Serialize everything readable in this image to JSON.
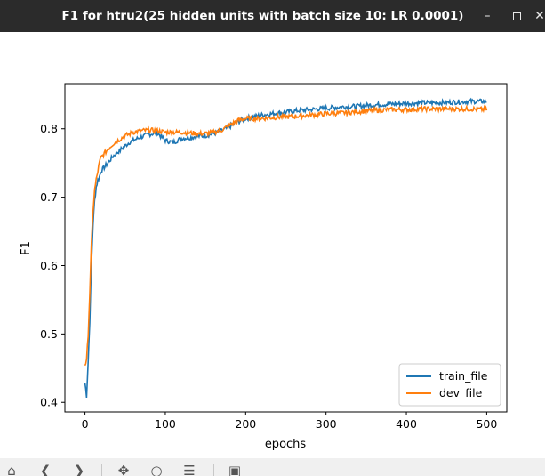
{
  "window": {
    "title": "F1 for htru2(25 hidden units with batch size 10: LR 0.0001)",
    "min_glyph": "–",
    "close_glyph": "✕"
  },
  "toolbar": {
    "icons": [
      "home-icon",
      "back-arrow-icon",
      "forward-arrow-icon",
      "pan-icon",
      "zoom-icon",
      "configure-subplots-icon",
      "save-icon"
    ]
  },
  "chart_data": {
    "type": "line",
    "xlabel": "epochs",
    "ylabel": "F1",
    "xlim": [
      -25,
      525
    ],
    "ylim": [
      0.386,
      0.866
    ],
    "xticks": [
      0,
      100,
      200,
      300,
      400,
      500
    ],
    "yticks": [
      0.4,
      0.5,
      0.6,
      0.7,
      0.8
    ],
    "ytick_labels": [
      "0.4",
      "0.5",
      "0.6",
      "0.7",
      "0.8"
    ],
    "legend_position": "lower-right",
    "grid": false,
    "series": [
      {
        "name": "train_file",
        "color": "#1f77b4",
        "points": [
          [
            0,
            0.428
          ],
          [
            2,
            0.41
          ],
          [
            4,
            0.46
          ],
          [
            6,
            0.52
          ],
          [
            8,
            0.6
          ],
          [
            10,
            0.66
          ],
          [
            12,
            0.695
          ],
          [
            14,
            0.715
          ],
          [
            16,
            0.725
          ],
          [
            18,
            0.73
          ],
          [
            20,
            0.738
          ],
          [
            25,
            0.745
          ],
          [
            30,
            0.752
          ],
          [
            35,
            0.76
          ],
          [
            40,
            0.765
          ],
          [
            45,
            0.77
          ],
          [
            50,
            0.775
          ],
          [
            55,
            0.78
          ],
          [
            60,
            0.783
          ],
          [
            70,
            0.788
          ],
          [
            80,
            0.792
          ],
          [
            90,
            0.794
          ],
          [
            100,
            0.783
          ],
          [
            110,
            0.78
          ],
          [
            120,
            0.786
          ],
          [
            130,
            0.787
          ],
          [
            140,
            0.789
          ],
          [
            150,
            0.79
          ],
          [
            160,
            0.793
          ],
          [
            170,
            0.797
          ],
          [
            180,
            0.803
          ],
          [
            190,
            0.81
          ],
          [
            200,
            0.815
          ],
          [
            220,
            0.82
          ],
          [
            240,
            0.823
          ],
          [
            260,
            0.826
          ],
          [
            280,
            0.828
          ],
          [
            300,
            0.83
          ],
          [
            320,
            0.832
          ],
          [
            340,
            0.833
          ],
          [
            360,
            0.835
          ],
          [
            380,
            0.836
          ],
          [
            400,
            0.837
          ],
          [
            420,
            0.838
          ],
          [
            440,
            0.838
          ],
          [
            460,
            0.839
          ],
          [
            480,
            0.84
          ],
          [
            500,
            0.84
          ]
        ]
      },
      {
        "name": "dev_file",
        "color": "#ff7f0e",
        "points": [
          [
            0,
            0.456
          ],
          [
            2,
            0.46
          ],
          [
            4,
            0.5
          ],
          [
            6,
            0.56
          ],
          [
            8,
            0.63
          ],
          [
            10,
            0.68
          ],
          [
            12,
            0.71
          ],
          [
            14,
            0.725
          ],
          [
            16,
            0.738
          ],
          [
            18,
            0.75
          ],
          [
            20,
            0.758
          ],
          [
            25,
            0.765
          ],
          [
            30,
            0.772
          ],
          [
            35,
            0.778
          ],
          [
            40,
            0.782
          ],
          [
            45,
            0.786
          ],
          [
            50,
            0.79
          ],
          [
            55,
            0.792
          ],
          [
            60,
            0.795
          ],
          [
            70,
            0.797
          ],
          [
            80,
            0.798
          ],
          [
            90,
            0.797
          ],
          [
            100,
            0.795
          ],
          [
            110,
            0.795
          ],
          [
            120,
            0.795
          ],
          [
            130,
            0.794
          ],
          [
            140,
            0.793
          ],
          [
            150,
            0.793
          ],
          [
            160,
            0.795
          ],
          [
            170,
            0.798
          ],
          [
            180,
            0.805
          ],
          [
            190,
            0.812
          ],
          [
            200,
            0.815
          ],
          [
            220,
            0.815
          ],
          [
            240,
            0.817
          ],
          [
            260,
            0.818
          ],
          [
            280,
            0.82
          ],
          [
            300,
            0.822
          ],
          [
            320,
            0.823
          ],
          [
            340,
            0.825
          ],
          [
            360,
            0.827
          ],
          [
            380,
            0.828
          ],
          [
            400,
            0.828
          ],
          [
            420,
            0.829
          ],
          [
            440,
            0.829
          ],
          [
            460,
            0.829
          ],
          [
            480,
            0.829
          ],
          [
            500,
            0.828
          ]
        ]
      }
    ]
  }
}
